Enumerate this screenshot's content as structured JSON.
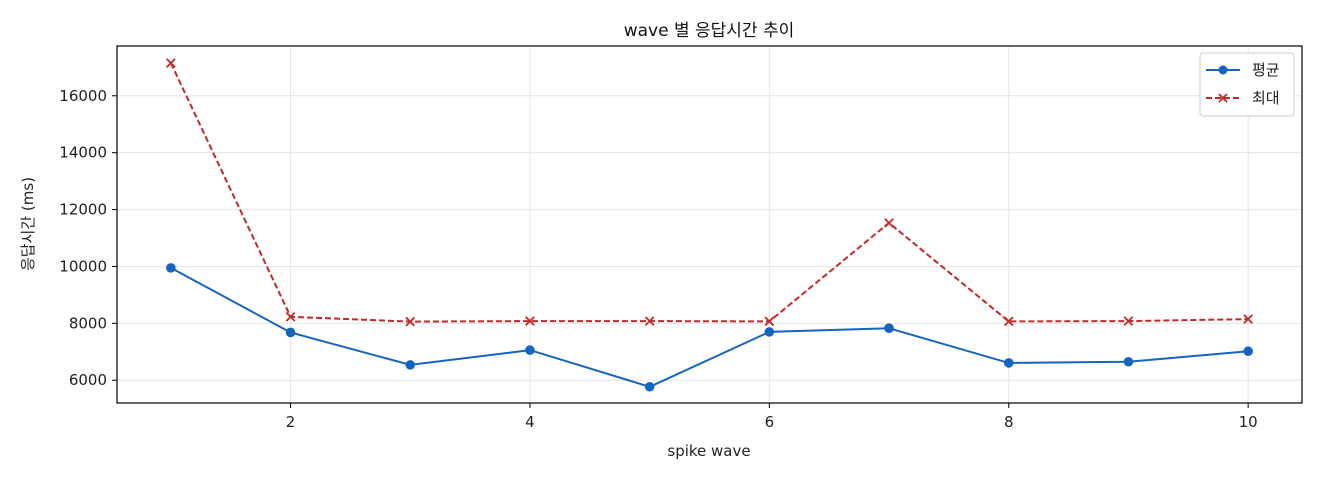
{
  "chart_data": {
    "type": "line",
    "title": "wave 별 응답시간 추이",
    "xlabel": "spike wave",
    "ylabel": "응답시간 (ms)",
    "x": [
      1,
      2,
      3,
      4,
      5,
      6,
      7,
      8,
      9,
      10
    ],
    "xlim": [
      0.55,
      10.45
    ],
    "ylim": [
      5200,
      17750
    ],
    "xticks": [
      2,
      4,
      6,
      8,
      10
    ],
    "yticks": [
      6000,
      8000,
      10000,
      12000,
      14000,
      16000
    ],
    "grid": true,
    "legend_position": "top-right",
    "series": [
      {
        "name": "평균",
        "color": "#1565c0",
        "line_style": "solid",
        "marker": "circle",
        "values": [
          9950,
          7680,
          6540,
          7060,
          5770,
          7700,
          7830,
          6610,
          6650,
          7020
        ]
      },
      {
        "name": "최대",
        "color": "#c62828",
        "line_style": "dashed",
        "marker": "x",
        "values": [
          17150,
          8230,
          8060,
          8080,
          8080,
          8070,
          11530,
          8070,
          8080,
          8150
        ]
      }
    ]
  }
}
